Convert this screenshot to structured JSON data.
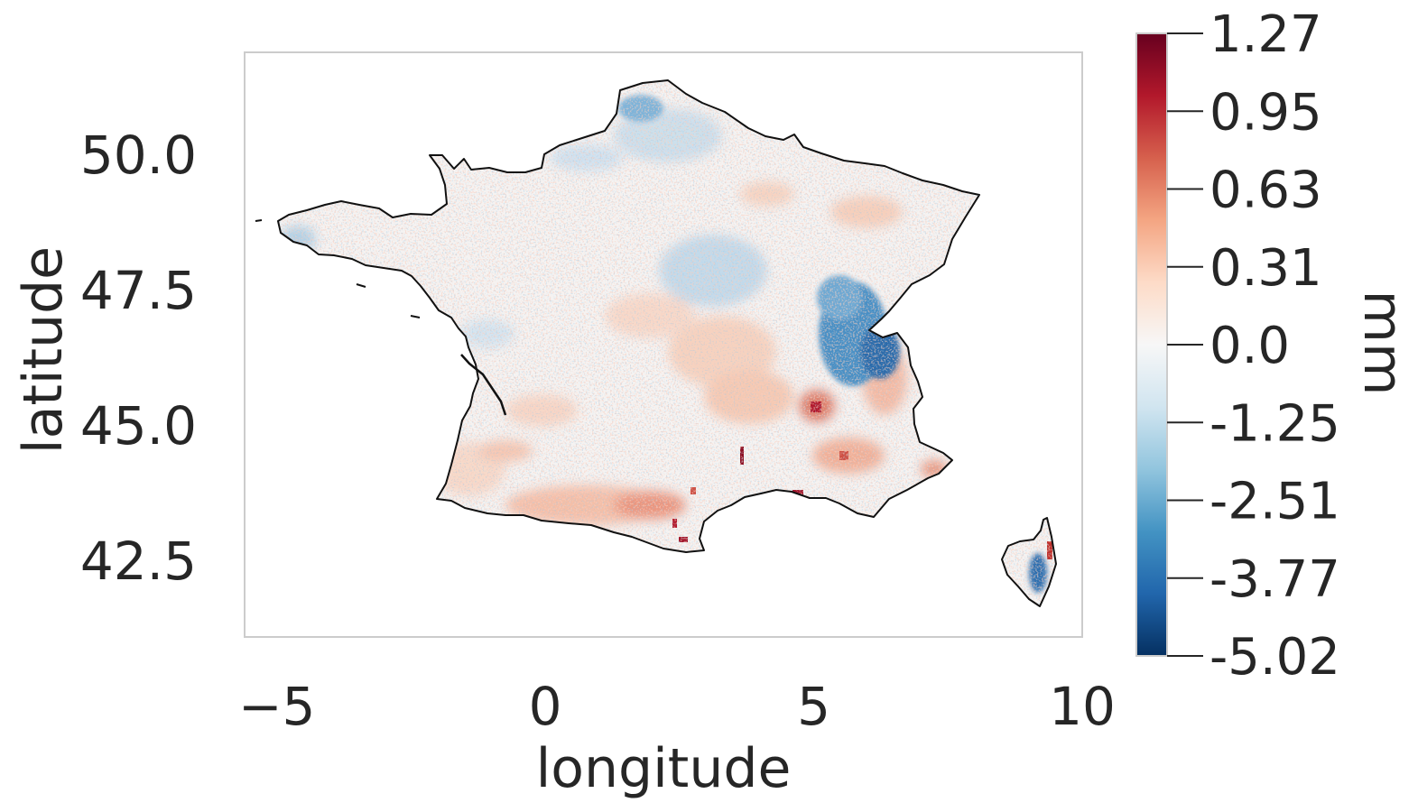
{
  "map": {
    "xlabel": "longitude",
    "ylabel": "latitude",
    "xlim": [
      -5.6,
      10.0
    ],
    "ylim": [
      41.1,
      51.9
    ],
    "x_ticks": [
      {
        "value": -5,
        "label": "−5"
      },
      {
        "value": 0,
        "label": "0"
      },
      {
        "value": 5,
        "label": "5"
      },
      {
        "value": 10,
        "label": "10"
      }
    ],
    "y_ticks": [
      {
        "value": 50.0,
        "label": "50.0"
      },
      {
        "value": 47.5,
        "label": "47.5"
      },
      {
        "value": 45.0,
        "label": "45.0"
      },
      {
        "value": 42.5,
        "label": "42.5"
      }
    ],
    "region": "France",
    "grid": false
  },
  "colorbar": {
    "label": "mm",
    "colormap": "RdBu_r",
    "ticks": [
      "1.27",
      "0.95",
      "0.63",
      "0.31",
      "0.0",
      "-1.25",
      "-2.51",
      "-3.77",
      "-5.02"
    ],
    "range": [
      -5.02,
      1.27
    ],
    "color_stops": [
      "#67001f",
      "#b2182b",
      "#d6604d",
      "#f4a582",
      "#fddbc7",
      "#f7f7f7",
      "#d1e5f0",
      "#92c5de",
      "#4393c3",
      "#2166ac",
      "#053061"
    ]
  }
}
